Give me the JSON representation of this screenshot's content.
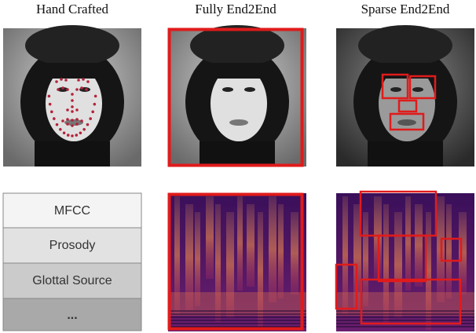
{
  "columns": [
    {
      "title": "Hand Crafted"
    },
    {
      "title": "Fully End2End"
    },
    {
      "title": "Sparse End2End"
    }
  ],
  "features": [
    "MFCC",
    "Prosody",
    "Glottal Source",
    "..."
  ]
}
